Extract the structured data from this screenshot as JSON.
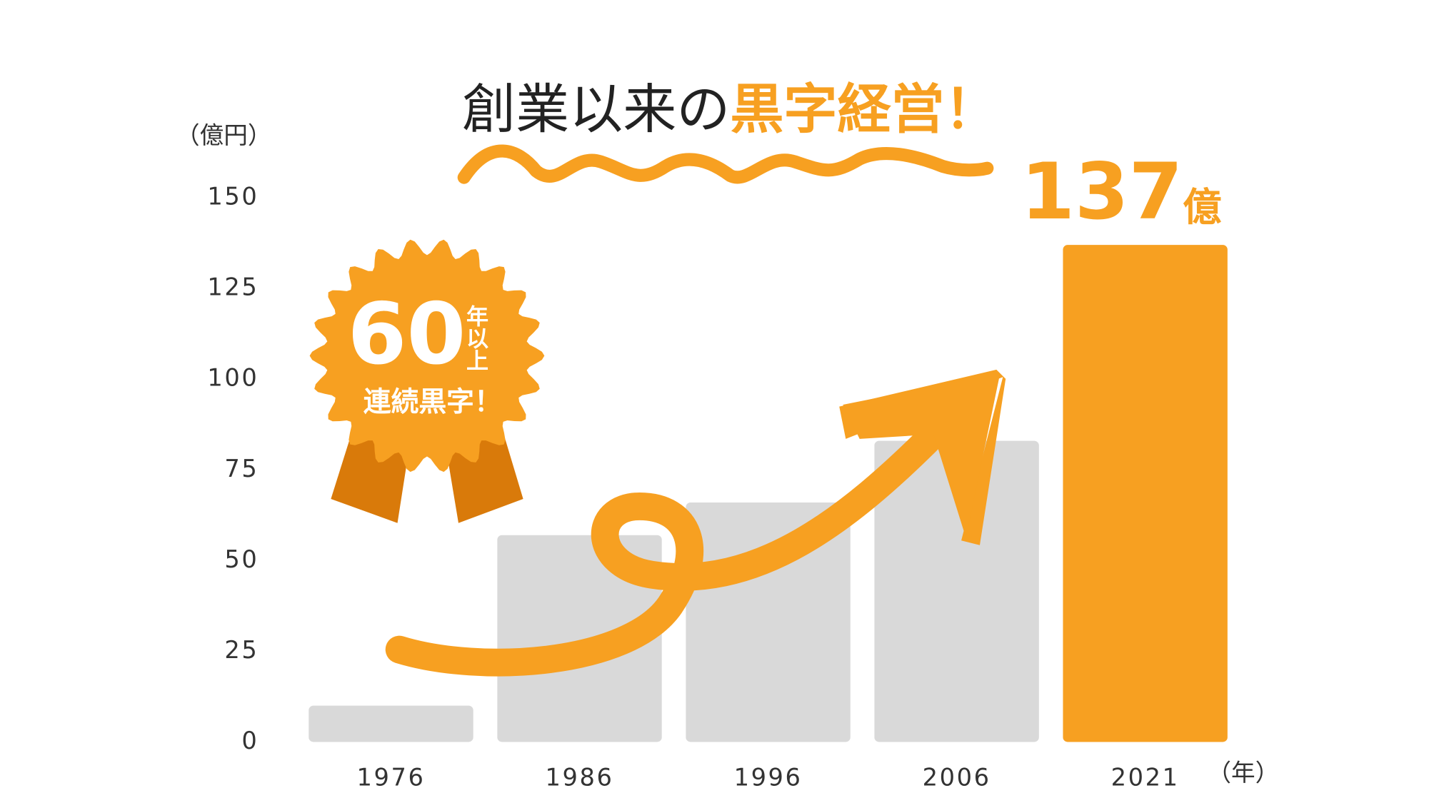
{
  "chart_data": {
    "type": "bar",
    "title": "創業以来の",
    "title_highlight": "黒字経営！",
    "y_label": "（億円）",
    "x_label": "（年）",
    "categories": [
      "1976",
      "1986",
      "1996",
      "2006",
      "2021"
    ],
    "values": [
      10,
      57,
      66,
      83,
      137
    ],
    "value_labels": [
      null,
      null,
      null,
      null,
      "137"
    ],
    "value_unit": "億",
    "colors": [
      "#d9d9d9",
      "#d9d9d9",
      "#d9d9d9",
      "#d9d9d9",
      "#f7a021"
    ],
    "ylim": [
      0,
      150
    ],
    "yticks": [
      0,
      25,
      50,
      75,
      100,
      125,
      150
    ],
    "badge_number": "60",
    "badge_unit": "年以上",
    "badge_text": "連続黒字！"
  }
}
